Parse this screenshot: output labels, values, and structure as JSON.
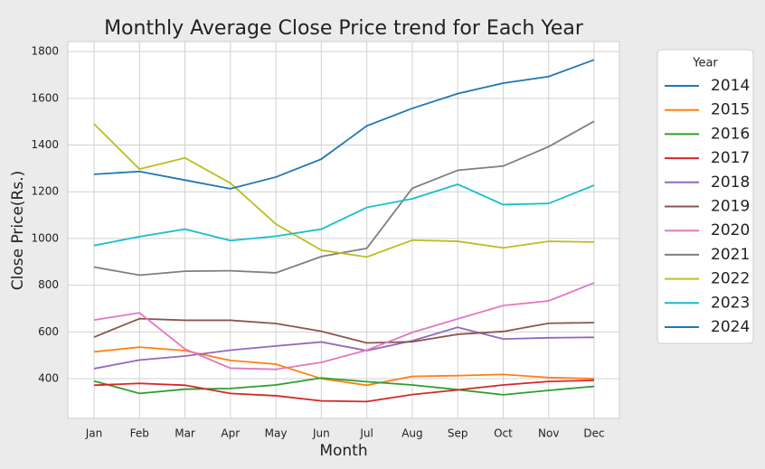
{
  "chart_data": {
    "type": "line",
    "title": "Monthly Average Close Price trend for Each Year",
    "xlabel": "Month",
    "ylabel": "Close Price(Rs.)",
    "legend_title": "Year",
    "categories": [
      "Jan",
      "Feb",
      "Mar",
      "Apr",
      "May",
      "Jun",
      "Jul",
      "Aug",
      "Sep",
      "Oct",
      "Nov",
      "Dec"
    ],
    "ylim": [
      230,
      1843
    ],
    "yticks": [
      400,
      600,
      800,
      1000,
      1200,
      1400,
      1600,
      1800
    ],
    "grid": true,
    "legend": "outside-right",
    "series": [
      {
        "name": "2014",
        "color": "#1f77b4",
        "values": [
          null,
          null,
          null,
          null,
          null,
          null,
          null,
          null,
          null,
          null,
          null,
          null
        ]
      },
      {
        "name": "2015",
        "color": "#ff7f0e",
        "values": [
          515,
          535,
          520,
          478,
          462,
          400,
          372,
          410,
          413,
          418,
          405,
          400
        ]
      },
      {
        "name": "2016",
        "color": "#2ca02c",
        "values": [
          390,
          337,
          355,
          358,
          373,
          403,
          387,
          373,
          353,
          331,
          350,
          367
        ]
      },
      {
        "name": "2017",
        "color": "#d62728",
        "values": [
          372,
          380,
          372,
          337,
          327,
          305,
          302,
          332,
          352,
          373,
          388,
          393
        ]
      },
      {
        "name": "2018",
        "color": "#9467bd",
        "values": [
          443,
          480,
          497,
          522,
          540,
          557,
          520,
          562,
          620,
          570,
          575,
          577
        ]
      },
      {
        "name": "2019",
        "color": "#8c564b",
        "values": [
          578,
          657,
          650,
          650,
          636,
          603,
          553,
          558,
          590,
          602,
          637,
          640
        ]
      },
      {
        "name": "2020",
        "color": "#e377c2",
        "values": [
          651,
          682,
          527,
          445,
          440,
          470,
          522,
          598,
          656,
          713,
          733,
          810
        ]
      },
      {
        "name": "2021",
        "color": "#7f7f7f",
        "values": [
          878,
          843,
          860,
          862,
          853,
          923,
          958,
          1215,
          1292,
          1310,
          1393,
          1502
        ]
      },
      {
        "name": "2022",
        "color": "#bcbd22",
        "values": [
          1490,
          1297,
          1345,
          1237,
          1062,
          950,
          921,
          993,
          988,
          960,
          988,
          985
        ]
      },
      {
        "name": "2023",
        "color": "#17becf",
        "values": [
          970,
          1008,
          1040,
          991,
          1010,
          1040,
          1133,
          1170,
          1232,
          1145,
          1150,
          1228
        ]
      },
      {
        "name": "2024",
        "color": "#1f77b4",
        "values": [
          1275,
          1287,
          1250,
          1213,
          1263,
          1340,
          1482,
          1557,
          1620,
          1665,
          1693,
          1765
        ]
      }
    ]
  }
}
